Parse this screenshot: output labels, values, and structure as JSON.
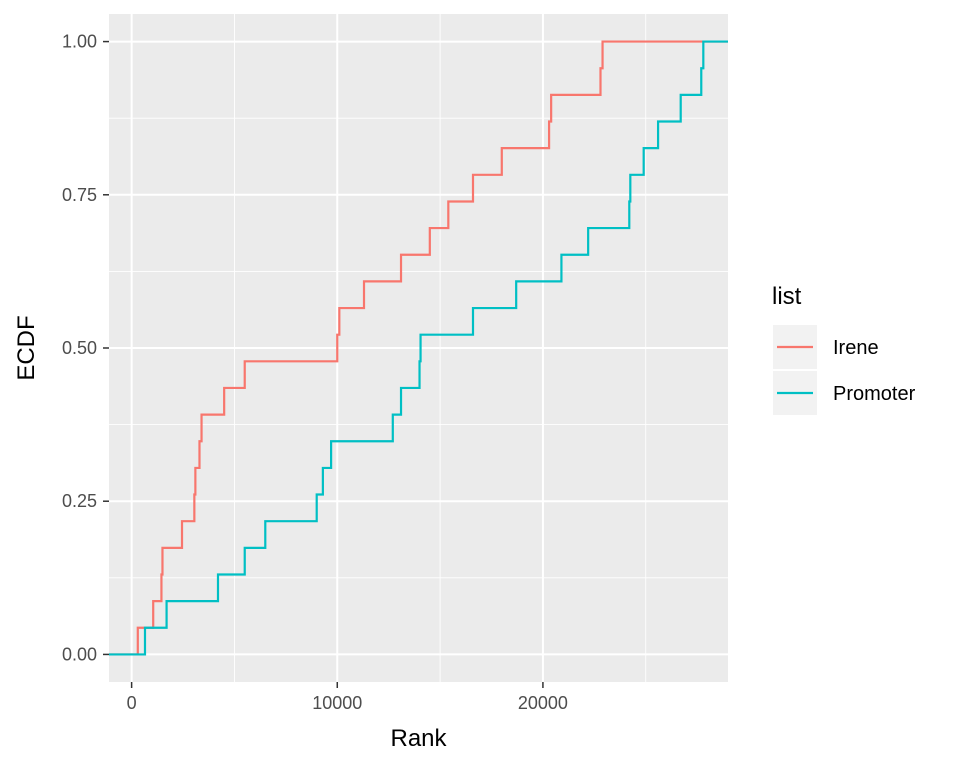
{
  "chart_data": {
    "type": "line",
    "title": "",
    "xlabel": "Rank",
    "ylabel": "ECDF",
    "xlim": [
      -1100,
      29000
    ],
    "ylim": [
      -0.045,
      1.045
    ],
    "x_ticks": [
      0,
      10000,
      20000
    ],
    "x_tick_labels": [
      "0",
      "10000",
      "20000"
    ],
    "y_ticks": [
      0,
      0.25,
      0.5,
      0.75,
      1.0
    ],
    "y_tick_labels": [
      "0.00",
      "0.25",
      "0.50",
      "0.75",
      "1.00"
    ],
    "grid": true,
    "legend": {
      "title": "list",
      "position": "right"
    },
    "series": [
      {
        "name": "Irene",
        "color": "#F8766D",
        "x": [
          -1100,
          300,
          1050,
          1450,
          1500,
          1600,
          2450,
          3050,
          3100,
          3300,
          3400,
          4500,
          5500,
          10000,
          10100,
          11300,
          13100,
          14500,
          15400,
          16600,
          18000,
          20300,
          20400,
          22800,
          22900,
          29000
        ],
        "y": [
          0,
          0.0435,
          0.087,
          0.1304,
          0.1739,
          0.1739,
          0.2174,
          0.2609,
          0.3043,
          0.3478,
          0.3913,
          0.4348,
          0.4783,
          0.5217,
          0.5652,
          0.6087,
          0.6522,
          0.6957,
          0.7391,
          0.7826,
          0.8261,
          0.8696,
          0.913,
          0.9565,
          1.0,
          1.0
        ]
      },
      {
        "name": "Promoter",
        "color": "#00BFC4",
        "x": [
          -1100,
          650,
          1700,
          4200,
          5500,
          6500,
          9000,
          9300,
          9700,
          12700,
          13100,
          14000,
          14050,
          16600,
          18700,
          20900,
          22200,
          24200,
          24250,
          24900,
          25600,
          26700,
          27700,
          27800,
          29000
        ],
        "y": [
          0,
          0.0435,
          0.087,
          0.1304,
          0.1739,
          0.2174,
          0.2609,
          0.3043,
          0.3478,
          0.3913,
          0.4348,
          0.4783,
          0.5217,
          0.5652,
          0.6087,
          0.6522,
          0.6957,
          0.7391,
          0.7826,
          0.8261,
          0.8696,
          0.913,
          0.9565,
          1.0,
          1.0
        ]
      }
    ]
  }
}
